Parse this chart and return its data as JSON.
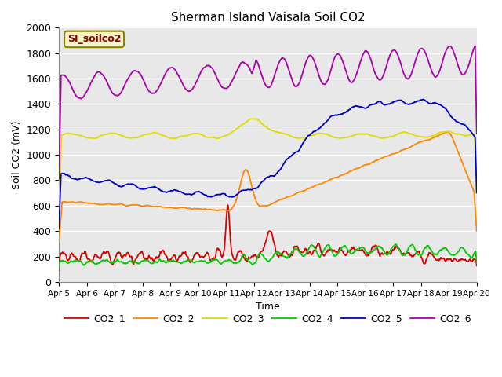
{
  "title": "Sherman Island Vaisala Soil CO2",
  "xlabel": "Time",
  "ylabel": "Soil CO2 (mV)",
  "watermark": "SI_soilco2",
  "ylim": [
    0,
    2000
  ],
  "xlim": [
    0,
    15
  ],
  "xtick_labels": [
    "Apr 5",
    "Apr 6",
    "Apr 7",
    "Apr 8",
    "Apr 9",
    "Apr 10",
    "Apr 11",
    "Apr 12",
    "Apr 13",
    "Apr 14",
    "Apr 15",
    "Apr 16",
    "Apr 17",
    "Apr 18",
    "Apr 19",
    "Apr 20"
  ],
  "ytick_values": [
    0,
    200,
    400,
    600,
    800,
    1000,
    1200,
    1400,
    1600,
    1800,
    2000
  ],
  "bg_color": "#e8e8e8",
  "line_colors": {
    "CO2_1": "#dd0000",
    "CO2_2": "#ff8800",
    "CO2_3": "#dddd00",
    "CO2_4": "#00cc00",
    "CO2_5": "#0000cc",
    "CO2_6": "#aa00aa"
  }
}
